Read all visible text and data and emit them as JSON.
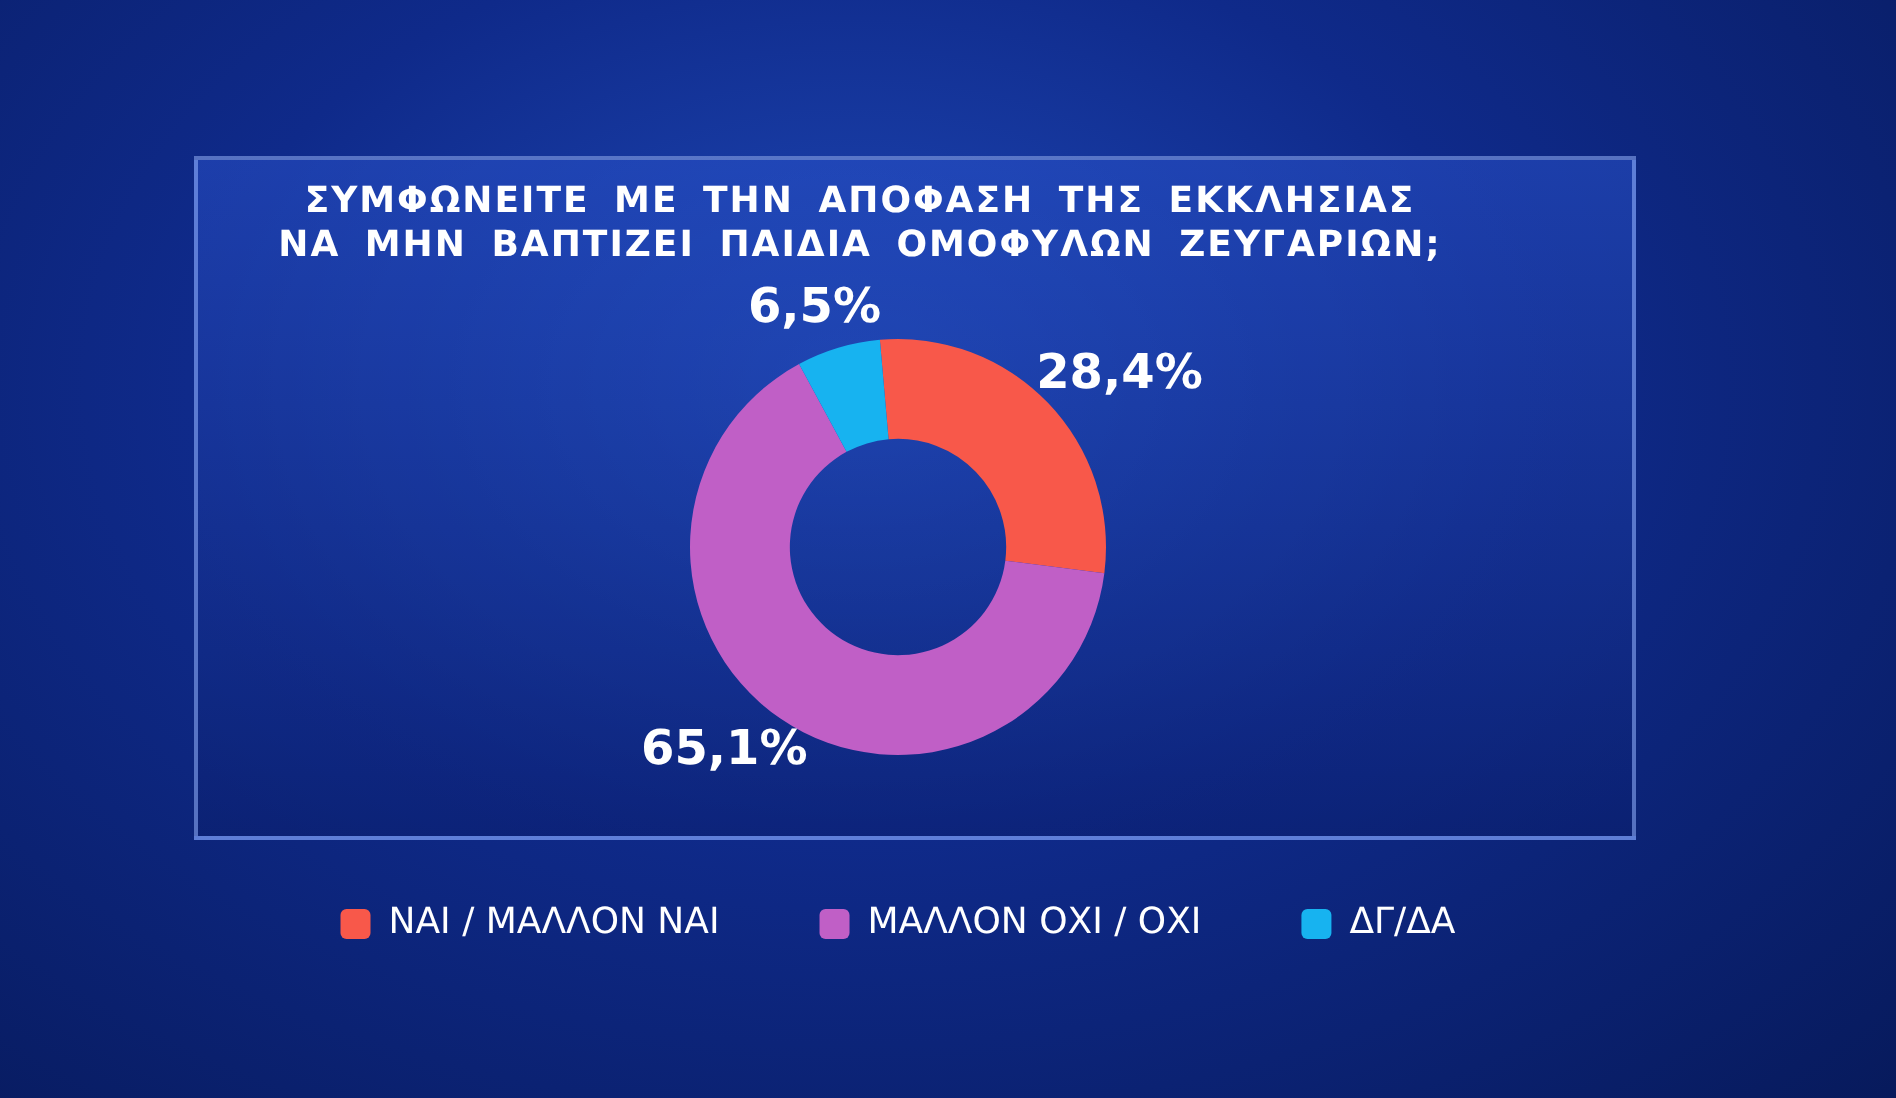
{
  "chart_data": {
    "type": "donut",
    "title": "ΣΥΜΦΩΝΕΙΤΕ ΜΕ ΤΗΝ ΑΠΟΦΑΣΗ ΤΗΣ ΕΚΚΛΗΣΙΑΣ ΝΑ ΜΗΝ ΒΑΠΤΙΖΕΙ ΠΑΙΔΙΑ ΟΜΟΦΥΛΩΝ ΖΕΥΓΑΡΙΩΝ;",
    "categories": [
      "ΝΑΙ / ΜΑΛΛΟΝ ΝΑΙ",
      "ΜΑΛΛΟΝ ΟΧΙ / ΟΧΙ",
      "ΔΓ/ΔΑ"
    ],
    "values": [
      28.4,
      65.1,
      6.5
    ],
    "colors": [
      "#f8584a",
      "#c05fc6",
      "#17b3f0"
    ],
    "value_labels": [
      "28,4%",
      "65,1%",
      "6,5%"
    ],
    "legend": "bottom"
  }
}
